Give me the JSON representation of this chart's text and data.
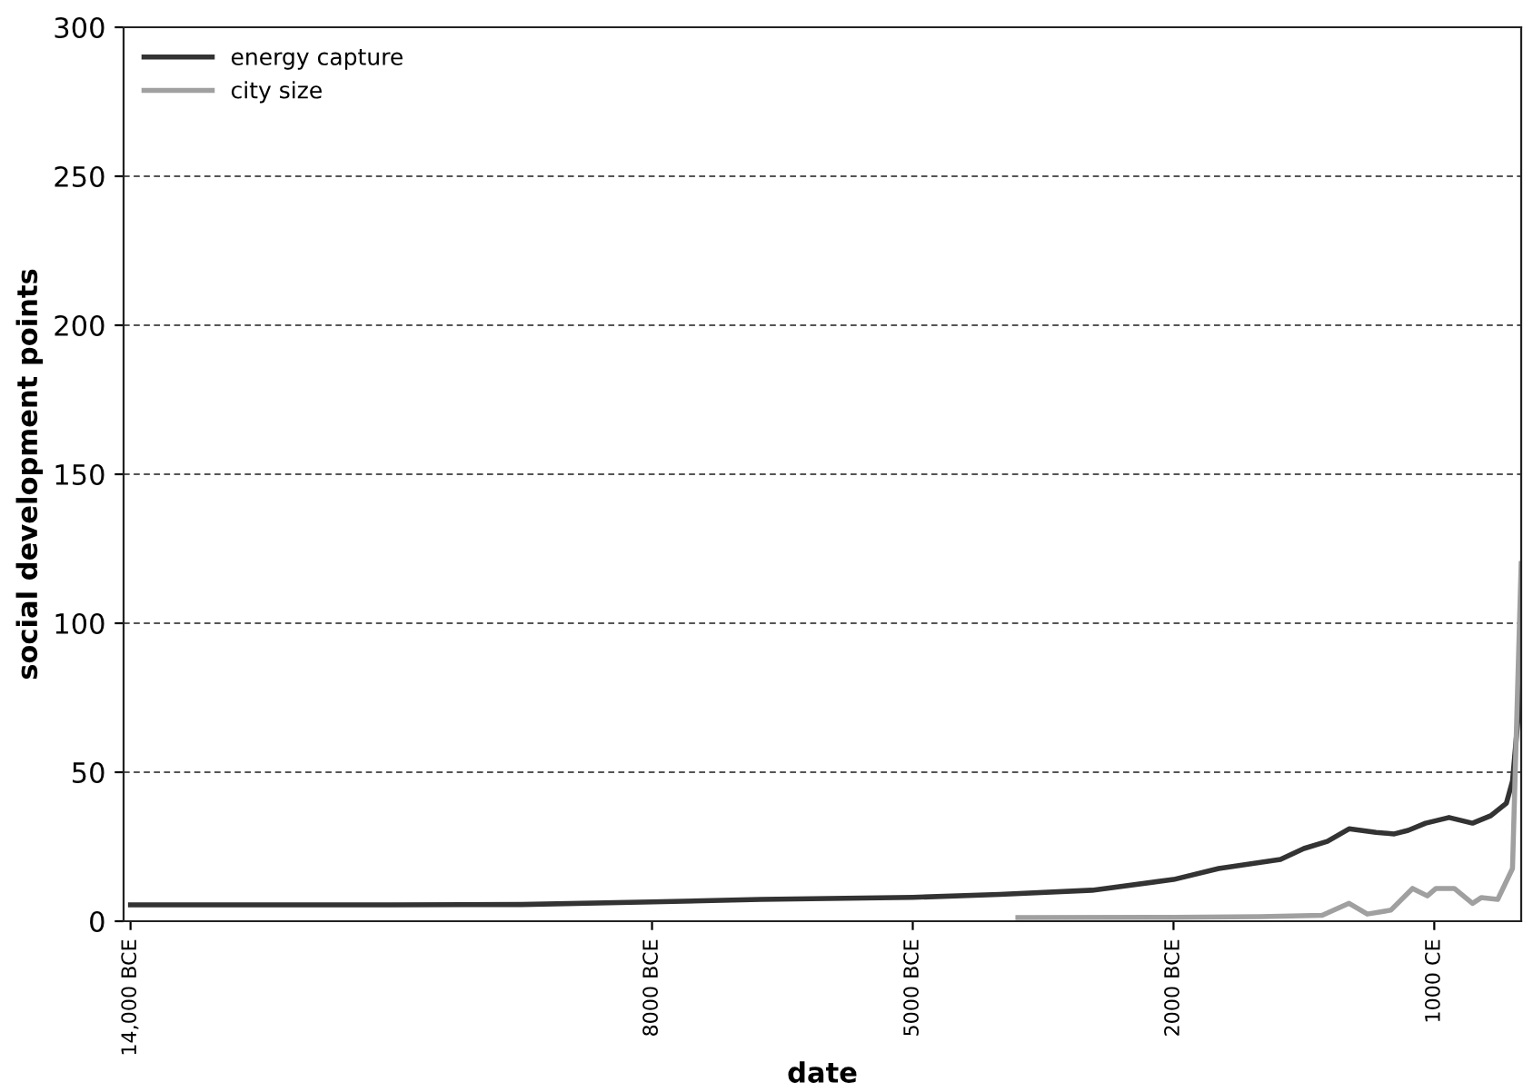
{
  "chart_data": {
    "type": "line",
    "xlabel": "date",
    "ylabel": "social development points",
    "xlim": [
      -14080,
      2000
    ],
    "ylim": [
      0,
      300
    ],
    "yticks": [
      0,
      50,
      100,
      150,
      200,
      250,
      300
    ],
    "xticks": [
      {
        "value": -14000,
        "label": "14,000 BCE"
      },
      {
        "value": -8000,
        "label": "8000 BCE"
      },
      {
        "value": -5000,
        "label": "5000 BCE"
      },
      {
        "value": -2000,
        "label": "2000 BCE"
      },
      {
        "value": 1000,
        "label": "1000 CE"
      }
    ],
    "grid": "y",
    "legend": "top left",
    "line_style": "solid",
    "marker": "none",
    "series": [
      {
        "name": "energy capture",
        "color": "#333333",
        "x": [
          -14000,
          -11000,
          -9500,
          -8000,
          -6750,
          -5000,
          -4000,
          -2937,
          -2000,
          -1480,
          -770,
          -500,
          -230,
          20,
          330,
          540,
          700,
          900,
          1170,
          1440,
          1650,
          1830,
          1900,
          2000
        ],
        "values": [
          5.5,
          5.5,
          5.6,
          6.5,
          7.3,
          8,
          9,
          10.4,
          14,
          17.7,
          20.7,
          24.4,
          26.8,
          31,
          29.8,
          29.3,
          30.5,
          32.9,
          34.8,
          32.9,
          35.4,
          39.6,
          47,
          80
        ]
      },
      {
        "name": "city size",
        "color": "#a0a0a0",
        "x": [
          -3790,
          -2000,
          -1000,
          -290,
          20,
          230,
          500,
          750,
          920,
          1020,
          1230,
          1440,
          1540,
          1730,
          1900,
          2000
        ],
        "values": [
          1.2,
          1.3,
          1.5,
          2,
          6,
          2.4,
          3.7,
          11,
          8.5,
          11,
          11,
          6,
          7.9,
          7.3,
          17.7,
          120
        ]
      }
    ]
  }
}
